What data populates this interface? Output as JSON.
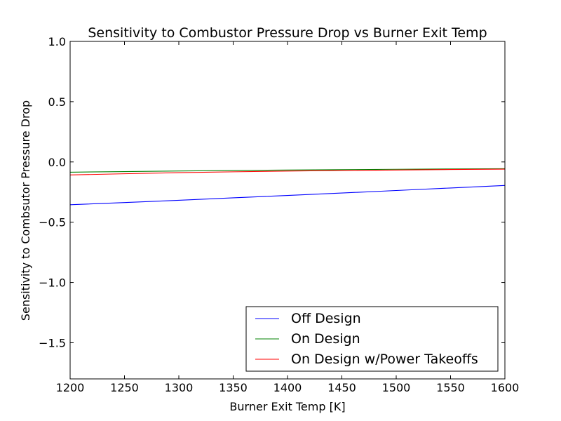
{
  "chart_data": {
    "type": "line",
    "title": "Sensitivity to Combustor Pressure Drop vs Burner Exit Temp",
    "xlabel": "Burner Exit Temp [K]",
    "ylabel": "Sensitivity to Combsutor Pressure Drop",
    "xlim": [
      1200,
      1600
    ],
    "ylim": [
      -1.8,
      1.0
    ],
    "xticks": [
      1200,
      1250,
      1300,
      1350,
      1400,
      1450,
      1500,
      1550,
      1600
    ],
    "yticks": [
      -1.5,
      -1.0,
      -0.5,
      0.0,
      0.5,
      1.0
    ],
    "ytick_labels": [
      "−1.5",
      "−1.0",
      "−0.5",
      "0.0",
      "0.5",
      "1.0"
    ],
    "grid": false,
    "legend_position": "lower-right",
    "x": [
      1200,
      1250,
      1300,
      1350,
      1400,
      1450,
      1500,
      1550,
      1600
    ],
    "series": [
      {
        "name": "Off Design",
        "color": "#0000ff",
        "values": [
          -0.355,
          -0.337,
          -0.318,
          -0.298,
          -0.278,
          -0.258,
          -0.237,
          -0.216,
          -0.195
        ]
      },
      {
        "name": "On Design",
        "color": "#008000",
        "values": [
          -0.085,
          -0.08,
          -0.075,
          -0.071,
          -0.067,
          -0.064,
          -0.061,
          -0.058,
          -0.056
        ]
      },
      {
        "name": "On Design w/Power Takeoffs",
        "color": "#ff0000",
        "values": [
          -0.108,
          -0.098,
          -0.089,
          -0.082,
          -0.076,
          -0.071,
          -0.067,
          -0.063,
          -0.06
        ]
      }
    ]
  }
}
